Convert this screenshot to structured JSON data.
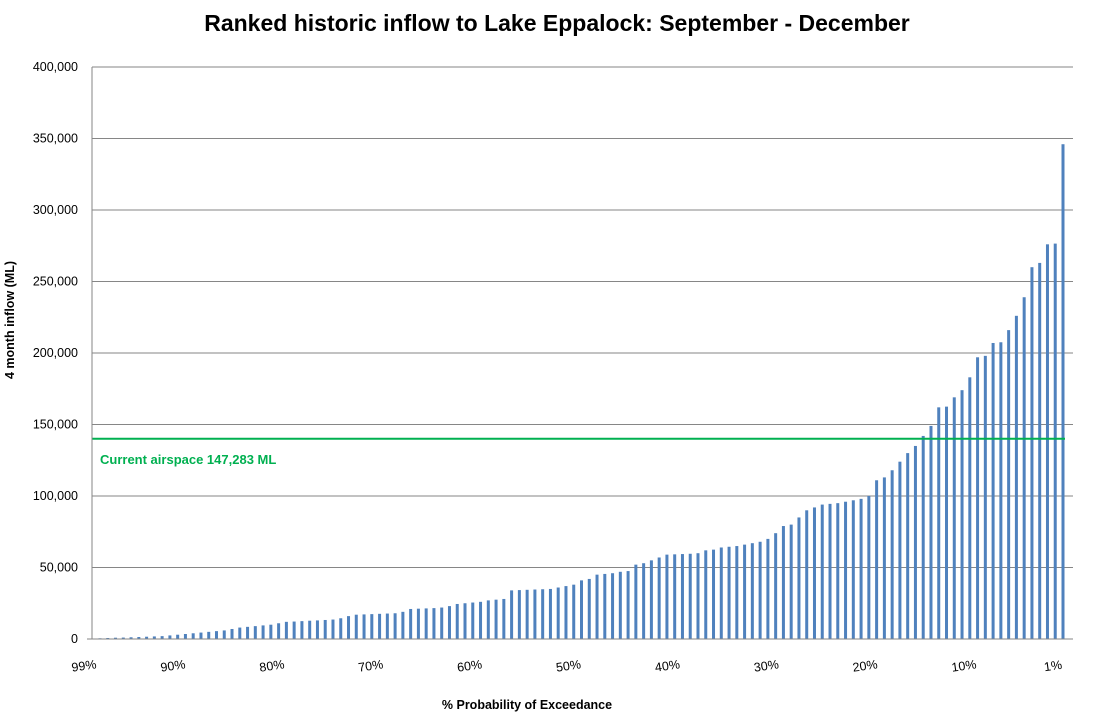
{
  "chart_data": {
    "type": "bar",
    "title": "Ranked historic inflow to Lake Eppalock: September - December",
    "xlabel": "% Probability of Exceedance",
    "ylabel": "4 month inflow (ML)",
    "ylim": [
      0,
      400000
    ],
    "y_ticks": [
      "0",
      "50,000",
      "100,000",
      "150,000",
      "200,000",
      "250,000",
      "300,000",
      "350,000",
      "400,000"
    ],
    "x_ticks": [
      {
        "label": "99%",
        "p": 99
      },
      {
        "label": "90%",
        "p": 90
      },
      {
        "label": "80%",
        "p": 80
      },
      {
        "label": "70%",
        "p": 70
      },
      {
        "label": "60%",
        "p": 60
      },
      {
        "label": "50%",
        "p": 50
      },
      {
        "label": "40%",
        "p": 40
      },
      {
        "label": "30%",
        "p": 30
      },
      {
        "label": "20%",
        "p": 20
      },
      {
        "label": "10%",
        "p": 10
      },
      {
        "label": "1%",
        "p": 1
      }
    ],
    "grid": true,
    "bar_color": "#4f81bd",
    "series": [
      {
        "values": [
          500,
          700,
          900,
          1000,
          1200,
          1400,
          1600,
          1800,
          2000,
          2500,
          3000,
          3500,
          4000,
          4500,
          5000,
          5500,
          6000,
          7000,
          8000,
          8500,
          9000,
          9500,
          10000,
          11000,
          12000,
          12200,
          12500,
          12800,
          13000,
          13300,
          13600,
          14500,
          16000,
          17000,
          17200,
          17400,
          17600,
          17800,
          18000,
          19000,
          21000,
          21200,
          21400,
          21600,
          22000,
          23000,
          24500,
          25000,
          25500,
          26000,
          27000,
          27500,
          28000,
          34000,
          34200,
          34400,
          34600,
          34800,
          35000,
          36000,
          37000,
          38000,
          41000,
          42000,
          45000,
          45500,
          46000,
          47000,
          47500,
          52000,
          53000,
          55000,
          57000,
          59000,
          59200,
          59400,
          59600,
          60000,
          62000,
          62500,
          64000,
          64500,
          65000,
          66000,
          67000,
          68000,
          70000,
          74000,
          79000,
          80000,
          85000,
          90000,
          92000,
          94000,
          94500,
          95000,
          96000,
          97000,
          98000,
          100000,
          111000,
          113000,
          118000,
          124000,
          130000,
          135000,
          142000,
          149000,
          162000,
          162500,
          169000,
          174000,
          183000,
          197000,
          198000,
          207000,
          207500,
          216000,
          226000,
          239000,
          260000,
          263000,
          276000,
          276500,
          346000
        ]
      }
    ],
    "reference_line": {
      "value": 140000,
      "label": "Current airspace 147,283 ML",
      "color": "#00b050"
    }
  }
}
